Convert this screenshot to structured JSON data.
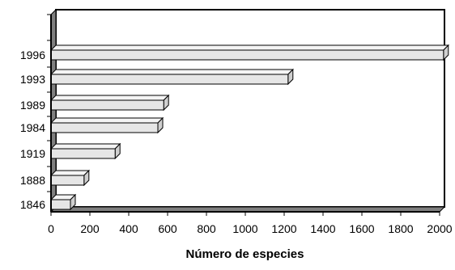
{
  "chart_data": {
    "type": "bar",
    "orientation": "horizontal",
    "style": "3d",
    "categories": [
      "1846",
      "1888",
      "1919",
      "1984",
      "1989",
      "1993",
      "1996"
    ],
    "values": [
      100,
      170,
      330,
      550,
      580,
      1220,
      2020
    ],
    "title": "",
    "xlabel": "Número de especies",
    "ylabel": "",
    "xlim": [
      0,
      2000
    ],
    "xticks": [
      "0",
      "200",
      "400",
      "600",
      "800",
      "1000",
      "1200",
      "1400",
      "1600",
      "1800",
      "2000"
    ],
    "grid": false,
    "legend": "none",
    "colors": {
      "bar_front": "#e6e6e6",
      "bar_top": "#f4f4f4",
      "bar_side": "#cfcfcf",
      "floor": "#7f7f7f",
      "outline": "#000000"
    }
  }
}
